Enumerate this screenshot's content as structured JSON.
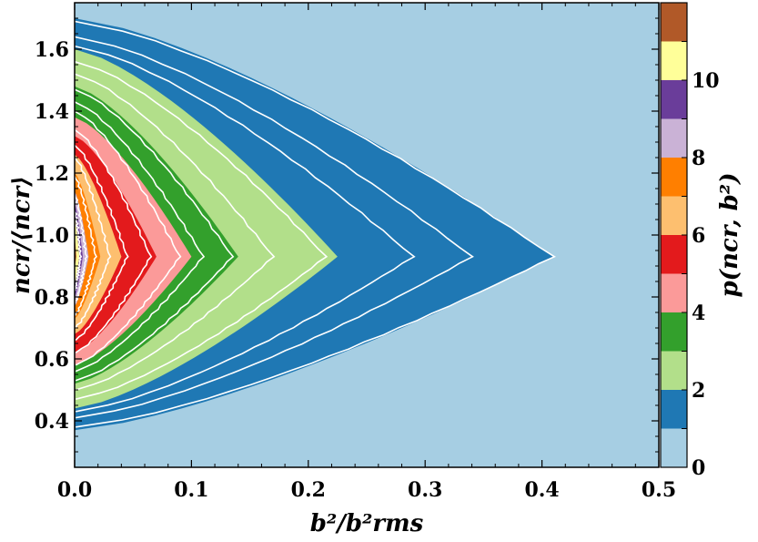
{
  "chart_data": {
    "type": "heatmap",
    "title": "",
    "xlabel": "b²/b²rms",
    "ylabel": "ncr/⟨ncr⟩",
    "colorbar_label": "p(ncr, b²)",
    "xlim": [
      0.0,
      0.5
    ],
    "ylim": [
      0.25,
      1.75
    ],
    "x_ticks": [
      "0.0",
      "0.1",
      "0.2",
      "0.3",
      "0.4",
      "0.5"
    ],
    "y_ticks": [
      "0.4",
      "0.6",
      "0.8",
      "1.0",
      "1.2",
      "1.4",
      "1.6"
    ],
    "colorbar_ticks": [
      "0",
      "2",
      "4",
      "6",
      "8",
      "10"
    ],
    "colorbar_range": [
      0,
      12
    ],
    "levels": [
      {
        "min": 0,
        "max": 1,
        "color": "#a6cee3"
      },
      {
        "min": 1,
        "max": 2,
        "color": "#1f78b4"
      },
      {
        "min": 2,
        "max": 3,
        "color": "#b2df8a"
      },
      {
        "min": 3,
        "max": 4,
        "color": "#33a02c"
      },
      {
        "min": 4,
        "max": 5,
        "color": "#fb9a99"
      },
      {
        "min": 5,
        "max": 6,
        "color": "#e31a1c"
      },
      {
        "min": 6,
        "max": 7,
        "color": "#fdbf6f"
      },
      {
        "min": 7,
        "max": 8,
        "color": "#ff7f00"
      },
      {
        "min": 8,
        "max": 9,
        "color": "#cab2d6"
      },
      {
        "min": 9,
        "max": 10,
        "color": "#6a3d9a"
      },
      {
        "min": 10,
        "max": 11,
        "color": "#ffff99"
      },
      {
        "min": 11,
        "max": 12,
        "color": "#b15928"
      }
    ],
    "regions": [
      {
        "level": 1,
        "x_extent": 0.41,
        "y_low": 0.37,
        "y_high": 1.7
      },
      {
        "level": 2,
        "x_extent": 0.225,
        "y_low": 0.44,
        "y_high": 1.6
      },
      {
        "level": 3,
        "x_extent": 0.14,
        "y_low": 0.52,
        "y_high": 1.48
      },
      {
        "level": 4,
        "x_extent": 0.1,
        "y_low": 0.58,
        "y_high": 1.38
      },
      {
        "level": 5,
        "x_extent": 0.07,
        "y_low": 0.62,
        "y_high": 1.32
      },
      {
        "level": 6,
        "x_extent": 0.04,
        "y_low": 0.68,
        "y_high": 1.26
      },
      {
        "level": 7,
        "x_extent": 0.022,
        "y_low": 0.73,
        "y_high": 1.2
      },
      {
        "level": 8,
        "x_extent": 0.012,
        "y_low": 0.77,
        "y_high": 1.14
      },
      {
        "level": 9,
        "x_extent": 0.007,
        "y_low": 0.8,
        "y_high": 1.1
      },
      {
        "level": 10,
        "x_extent": 0.004,
        "y_low": 0.84,
        "y_high": 1.06
      },
      {
        "level": 11,
        "x_extent": 0.0015,
        "y_low": 0.9,
        "y_high": 0.99
      }
    ],
    "contour_lines": [
      {
        "x_extent": 0.41,
        "y_low": 0.38,
        "y_high": 1.69
      },
      {
        "x_extent": 0.34,
        "y_low": 0.41,
        "y_high": 1.64
      },
      {
        "x_extent": 0.29,
        "y_low": 0.43,
        "y_high": 1.61
      },
      {
        "x_extent": 0.215,
        "y_low": 0.47,
        "y_high": 1.56
      },
      {
        "x_extent": 0.17,
        "y_low": 0.5,
        "y_high": 1.52
      },
      {
        "x_extent": 0.135,
        "y_low": 0.53,
        "y_high": 1.47
      },
      {
        "x_extent": 0.11,
        "y_low": 0.56,
        "y_high": 1.43
      },
      {
        "x_extent": 0.09,
        "y_low": 0.58,
        "y_high": 1.4
      },
      {
        "x_extent": 0.065,
        "y_low": 0.62,
        "y_high": 1.34
      },
      {
        "x_extent": 0.045,
        "y_low": 0.66,
        "y_high": 1.29
      },
      {
        "x_extent": 0.03,
        "y_low": 0.7,
        "y_high": 1.25
      },
      {
        "x_extent": 0.018,
        "y_low": 0.74,
        "y_high": 1.19
      },
      {
        "x_extent": 0.01,
        "y_low": 0.78,
        "y_high": 1.13
      },
      {
        "x_extent": 0.005,
        "y_low": 0.82,
        "y_high": 1.08
      }
    ],
    "ridge_y": 0.93,
    "grid": false,
    "colorbar_position": "right"
  }
}
